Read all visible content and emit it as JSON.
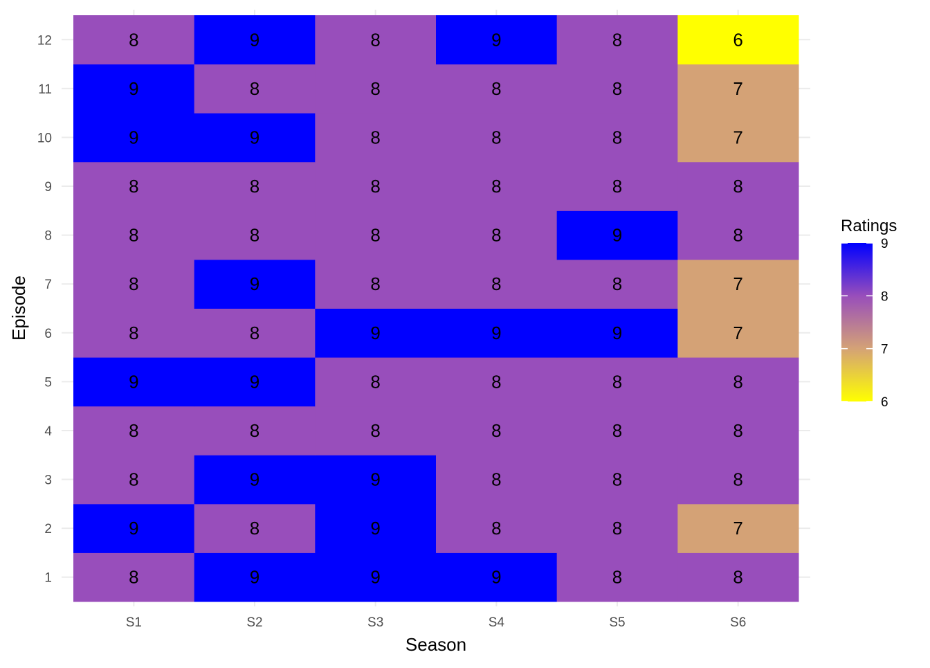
{
  "chart_data": {
    "type": "heatmap",
    "xlabel": "Season",
    "ylabel": "Episode",
    "x_categories": [
      "S1",
      "S2",
      "S3",
      "S4",
      "S5",
      "S6"
    ],
    "y_categories": [
      "1",
      "2",
      "3",
      "4",
      "5",
      "6",
      "7",
      "8",
      "9",
      "10",
      "11",
      "12"
    ],
    "values": [
      [
        8,
        9,
        9,
        9,
        8,
        8
      ],
      [
        9,
        8,
        9,
        8,
        8,
        7
      ],
      [
        8,
        9,
        9,
        8,
        8,
        8
      ],
      [
        8,
        8,
        8,
        8,
        8,
        8
      ],
      [
        9,
        9,
        8,
        8,
        8,
        8
      ],
      [
        8,
        8,
        9,
        9,
        9,
        7
      ],
      [
        8,
        9,
        8,
        8,
        8,
        7
      ],
      [
        8,
        8,
        8,
        8,
        9,
        8
      ],
      [
        8,
        8,
        8,
        8,
        8,
        8
      ],
      [
        9,
        9,
        8,
        8,
        8,
        7
      ],
      [
        9,
        8,
        8,
        8,
        8,
        7
      ],
      [
        8,
        9,
        8,
        9,
        8,
        6
      ]
    ],
    "value_colors": {
      "6": "#FFFF00",
      "7": "#D4A276",
      "8": "#984EBB",
      "9": "#0000FF"
    },
    "legend": {
      "title": "Ratings",
      "ticks": [
        "6",
        "7",
        "8",
        "9"
      ],
      "range": [
        6,
        9
      ],
      "gradient": [
        "#FFFF00",
        "#D4A276",
        "#984EBB",
        "#0000FF"
      ],
      "position": "right"
    },
    "grid": true,
    "grid_color": "#EBEBEB",
    "label_color": "#000000",
    "tick_color": "#4D4D4D"
  }
}
